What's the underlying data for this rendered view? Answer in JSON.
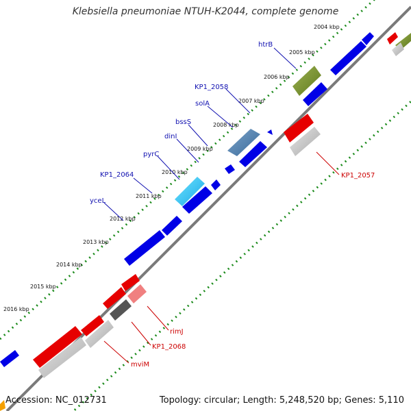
{
  "title": "Klebsiella pneumoniae NTUH-K2044, complete genome",
  "footer": {
    "accession": "Accession: NC_012731",
    "summary": "Topology: circular; Length: 5,248,520 bp; Genes: 5,110"
  },
  "ticks": [
    "2004 kbp",
    "2005 kbp",
    "2006 kbp",
    "2007 kbp",
    "2008 kbp",
    "2009 kbp",
    "2010 kbp",
    "2011 kbp",
    "2012 kbp",
    "2013 kbp",
    "2014 kbp",
    "2015 kbp",
    "2016 kbp"
  ],
  "genes_forward": [
    "htrB",
    "KP1_2058",
    "solA",
    "bssS",
    "dinI",
    "pyrC",
    "KP1_2064",
    "yceL"
  ],
  "genes_reverse": [
    "KP1_2057",
    "rimJ",
    "KP1_2068",
    "mviM"
  ],
  "colors": {
    "backbone": "#7a7a7a",
    "forward_cds": "#0000e6",
    "reverse_cds": "#e60000",
    "forward_label": "#1010b0",
    "reverse_label": "#cc0000",
    "gc_dots": "#1a8a1a"
  }
}
